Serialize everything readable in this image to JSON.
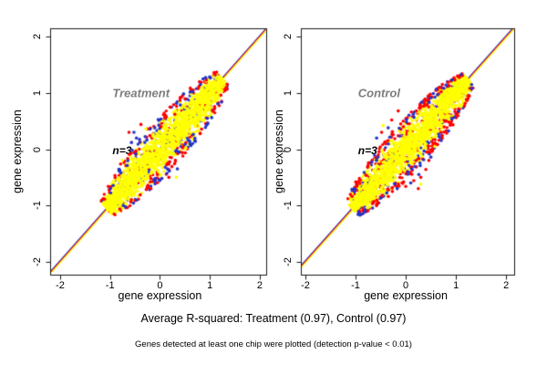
{
  "figure": {
    "background": "#ffffff",
    "frame_color": "#1a1a1a"
  },
  "footer": {
    "line1": "Average R-squared: Treatment (0.97), Control (0.97)",
    "line2": "Genes detected at least one chip were plotted (detection p-value < 0.01)"
  },
  "chart_data": [
    {
      "type": "scatter",
      "title": "Treatment",
      "title_color": "#7d7d7d",
      "title_xy": [
        -0.95,
        1.0
      ],
      "annotation": "n=3",
      "annotation_xy": [
        -0.95,
        -0.02
      ],
      "n_chips": 3,
      "r_squared": 0.97,
      "xlabel": "gene expression",
      "ylabel": "gene expression",
      "xlim": [
        -2.2,
        2.13
      ],
      "ylim": [
        -2.23,
        2.15
      ],
      "xticks": [
        -2,
        -1,
        0,
        1,
        2
      ],
      "yticks": [
        -2,
        -1,
        0,
        1,
        2
      ],
      "colors": {
        "red": "#ff0000",
        "blue": "#2233cc",
        "yellow": "#ffff00"
      },
      "identity_line_colors": [
        "#2233cc",
        "#ff0000",
        "#ffff00"
      ],
      "cloud": {
        "seed": 7,
        "t_min": -1.06,
        "t_max": 1.26,
        "center": 0.1,
        "a": 1.28,
        "half_width": 0.36,
        "counts": {
          "red_base": 300,
          "blue_base": 200,
          "yellow": 1500,
          "red_rim": 85,
          "blue_rim": 55
        }
      },
      "outliers": {
        "red": [
          [
            -0.62,
            0.3
          ],
          [
            -0.38,
            0.44
          ],
          [
            -0.25,
            0.36
          ],
          [
            0.18,
            -0.5
          ],
          [
            0.02,
            0.4
          ],
          [
            -0.18,
            -0.52
          ],
          [
            0.46,
            -0.12
          ],
          [
            0.3,
            0.62
          ],
          [
            -0.05,
            -0.45
          ]
        ],
        "blue": [
          [
            -0.52,
            0.3
          ],
          [
            -0.47,
            0.2
          ],
          [
            0.04,
            -0.52
          ],
          [
            0.14,
            -0.43
          ],
          [
            -0.1,
            -0.57
          ],
          [
            -0.57,
            0.12
          ],
          [
            0.35,
            -0.35
          ]
        ],
        "yellow": [
          [
            0.33,
            -0.5
          ],
          [
            -0.28,
            0.36
          ],
          [
            0.52,
            0.02
          ],
          [
            -0.75,
            -0.2
          ]
        ]
      }
    },
    {
      "type": "scatter",
      "title": "Control",
      "title_color": "#7d7d7d",
      "title_xy": [
        -0.95,
        1.0
      ],
      "annotation": "n=3",
      "annotation_xy": [
        -0.95,
        -0.02
      ],
      "n_chips": 3,
      "r_squared": 0.97,
      "xlabel": "gene expression",
      "ylabel": "gene expression",
      "xlim": [
        -2.09,
        2.16
      ],
      "ylim": [
        -2.23,
        2.15
      ],
      "xticks": [
        -2,
        -1,
        0,
        1,
        2
      ],
      "yticks": [
        -2,
        -1,
        0,
        1,
        2
      ],
      "colors": {
        "red": "#ff0000",
        "blue": "#2233cc",
        "yellow": "#ffff00"
      },
      "identity_line_colors": [
        "#2233cc",
        "#ff0000",
        "#ffff00"
      ],
      "cloud": {
        "seed": 13,
        "t_min": -1.06,
        "t_max": 1.24,
        "center": 0.08,
        "a": 1.26,
        "half_width": 0.35,
        "counts": {
          "red_base": 330,
          "blue_base": 200,
          "yellow": 1500,
          "red_rim": 150,
          "blue_rim": 55
        }
      },
      "outliers": {
        "red": [
          [
            -0.15,
            0.68
          ],
          [
            -0.28,
            0.52
          ],
          [
            0.3,
            -0.5
          ],
          [
            0.16,
            -0.56
          ],
          [
            0.4,
            -0.36
          ],
          [
            0.46,
            -0.2
          ],
          [
            -0.48,
            0.3
          ],
          [
            0.0,
            -0.66
          ],
          [
            0.55,
            0.1
          ],
          [
            0.25,
            -0.7
          ],
          [
            -0.05,
            0.5
          ]
        ],
        "blue": [
          [
            -0.58,
            0.2
          ],
          [
            0.26,
            -0.45
          ],
          [
            0.5,
            -0.14
          ],
          [
            -0.35,
            0.38
          ],
          [
            0.1,
            -0.6
          ]
        ],
        "yellow": [
          [
            -0.45,
            0.42
          ],
          [
            0.3,
            -0.62
          ],
          [
            0.58,
            0.05
          ]
        ]
      }
    }
  ]
}
